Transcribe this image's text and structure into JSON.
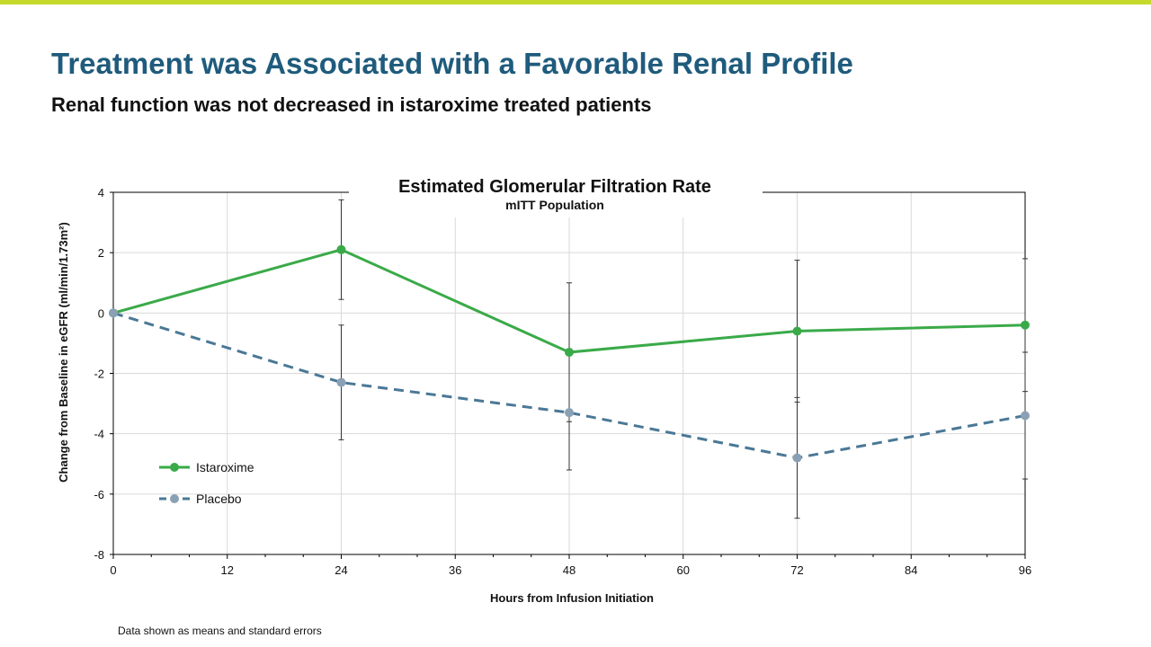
{
  "slide": {
    "title": "Treatment was Associated with a Favorable Renal Profile",
    "subtitle": "Renal function was not decreased in istaroxime treated patients",
    "footnote": "Data shown as means and standard errors",
    "accent_color": "#c5d92d",
    "title_color": "#1f5b7c"
  },
  "chart_data": {
    "type": "line",
    "title": "Estimated Glomerular Filtration Rate",
    "subtitle": "mITT Population",
    "xlabel": "Hours from Infusion Initiation",
    "ylabel": "Change from Baseline in eGFR (ml/min/1.73m²)",
    "xlim": [
      0,
      96
    ],
    "ylim": [
      -8,
      4
    ],
    "x_ticks": [
      0,
      12,
      24,
      36,
      48,
      60,
      72,
      84,
      96
    ],
    "y_ticks": [
      -8,
      -6,
      -4,
      -2,
      0,
      2,
      4
    ],
    "grid": true,
    "legend_position": "bottom-left",
    "series": [
      {
        "name": "Istaroxime",
        "color": "#3aaa49",
        "dash": "solid",
        "x": [
          0,
          24,
          48,
          72,
          96
        ],
        "y": [
          0,
          2.1,
          -1.3,
          -0.6,
          -0.4
        ],
        "error": [
          0,
          1.65,
          2.3,
          2.35,
          2.2
        ]
      },
      {
        "name": "Placebo",
        "color": "#4a7896",
        "marker_color": "#8aa0b4",
        "dash": "dashed",
        "x": [
          0,
          24,
          48,
          72,
          96
        ],
        "y": [
          0,
          -2.3,
          -3.3,
          -4.8,
          -3.4
        ],
        "error": [
          0,
          1.9,
          1.9,
          2.0,
          2.1
        ]
      }
    ]
  }
}
